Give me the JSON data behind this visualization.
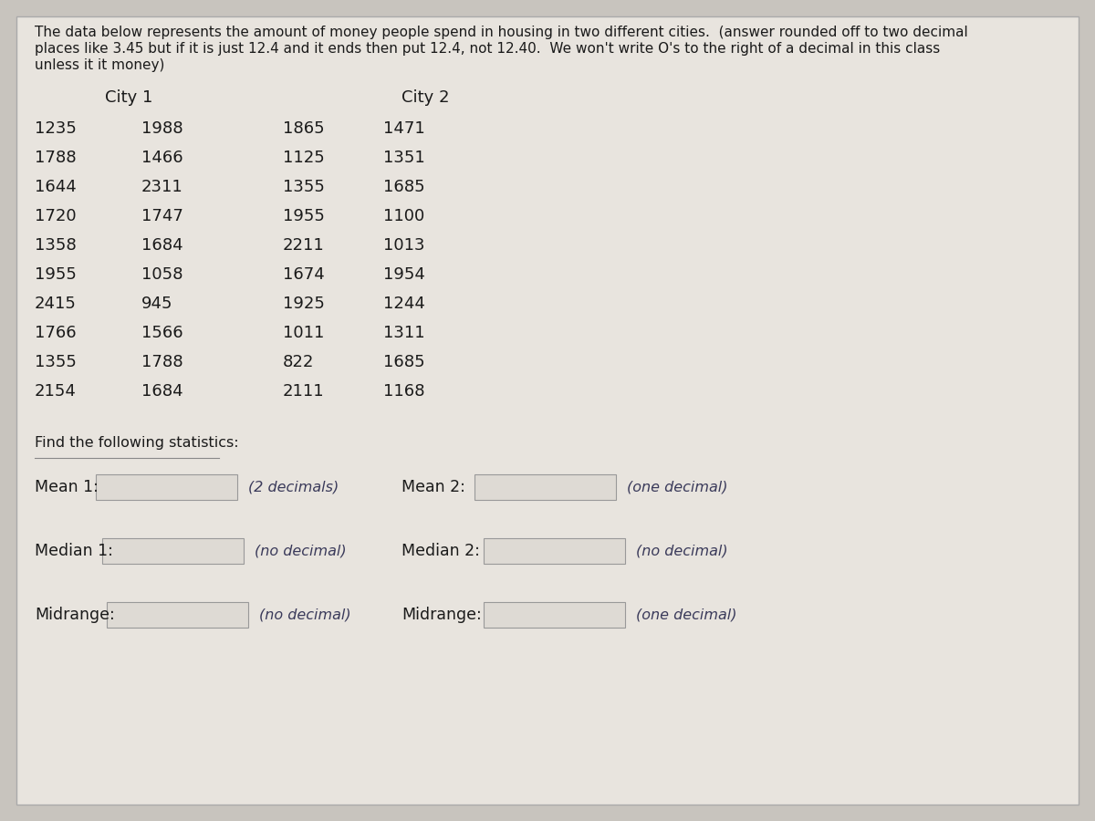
{
  "title_line1": "The data below represents the amount of money people spend in housing in two different cities.  (answer rounded off to two decimal",
  "title_line2": "places like 3.45 but if it is just 12.4 and it ends then put 12.4, not 12.40.  We won't write O's to the right of a decimal in this class",
  "title_line3": "unless it it money)",
  "city1_label": "City 1",
  "city2_label": "City 2",
  "city1_col1": [
    1235,
    1788,
    1644,
    1720,
    1358,
    1955,
    2415,
    1766,
    1355,
    2154
  ],
  "city1_col2": [
    1988,
    1466,
    2311,
    1747,
    1684,
    1058,
    945,
    1566,
    1788,
    1684
  ],
  "city2_col1": [
    1865,
    1125,
    1355,
    1955,
    2211,
    1674,
    1925,
    1011,
    822,
    2111
  ],
  "city2_col2": [
    1471,
    1351,
    1685,
    1100,
    1013,
    1954,
    1244,
    1311,
    1685,
    1168
  ],
  "stats_label": "Find the following statistics:",
  "mean1_label": "Mean 1:",
  "mean1_hint": "(2 decimals)",
  "mean2_label": "Mean 2:",
  "mean2_hint": "(one decimal)",
  "median1_label": "Median 1:",
  "median1_hint": "(no decimal)",
  "median2_label": "Median 2:",
  "median2_hint": "(no decimal)",
  "midrange1_label": "Midrange:",
  "midrange1_hint": "(no decimal)",
  "midrange2_label": "Midrange:",
  "midrange2_hint": "(one decimal)",
  "bg_color": "#c8c4be",
  "panel_color": "#e8e4de",
  "text_color": "#1a1a1a",
  "box_line_color": "#999999",
  "hint_color": "#3a3a5a",
  "font_size_title": 11.0,
  "font_size_data": 13.0,
  "font_size_city": 13.0,
  "font_size_stats_label": 11.5,
  "font_size_stats": 12.5,
  "font_size_hint": 11.5
}
